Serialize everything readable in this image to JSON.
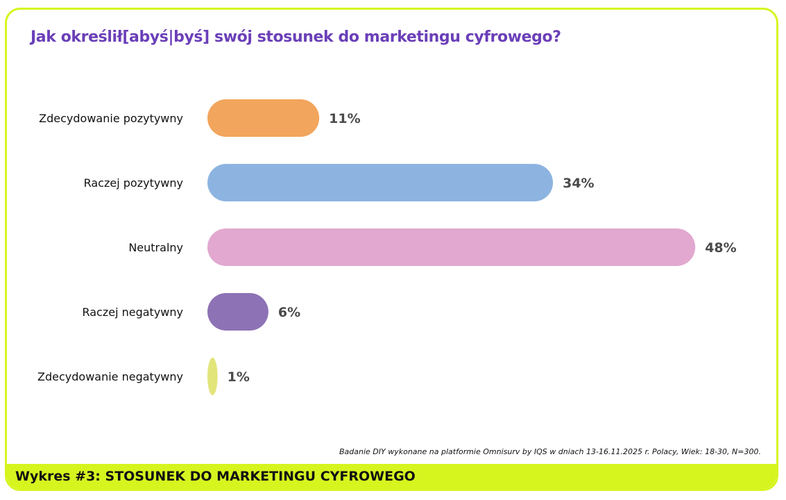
{
  "colors": {
    "border": "#d6f51f",
    "title": "#6b3fb8",
    "value_text": "#4a4a4a"
  },
  "chart_data": {
    "type": "bar",
    "orientation": "horizontal",
    "title": "Jak określił[abyś|byś] swój stosunek do marketingu cyfrowego?",
    "categories": [
      "Zdecydowanie pozytywny",
      "Raczej pozytywny",
      "Neutralny",
      "Raczej negatywny",
      "Zdecydowanie negatywny"
    ],
    "values": [
      11,
      34,
      48,
      6,
      1
    ],
    "value_labels": [
      "11%",
      "34%",
      "48%",
      "6%",
      "1%"
    ],
    "bar_colors": [
      "#f2a55c",
      "#8db4e0",
      "#e2a8d0",
      "#8d72b5",
      "#e2e57a"
    ],
    "unit": "%",
    "grid": false,
    "legend": "none"
  },
  "source_note": "Badanie DIY wykonane na platformie Omnisurv by IQS w dniach 13-16.11.2025 r.  Polacy, Wiek: 18-30, N=300.",
  "footer": {
    "label": "Wykres #3: STOSUNEK DO MARKETINGU CYFROWEGO"
  }
}
